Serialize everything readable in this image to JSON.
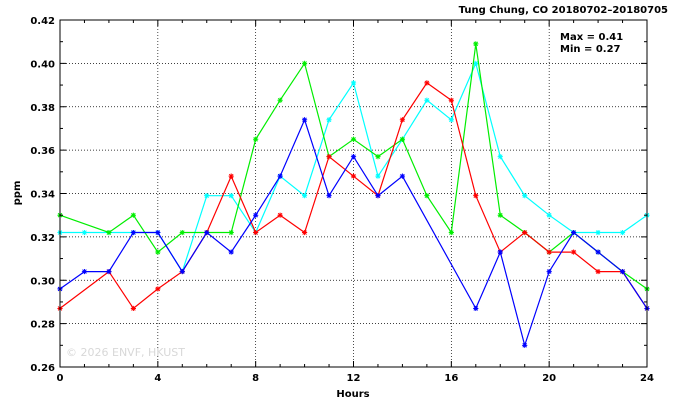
{
  "chart_data": {
    "type": "line",
    "title": "Tung Chung, CO 20180702–20180705",
    "xlabel": "Hours",
    "ylabel": "ppm",
    "xlim": [
      0,
      24
    ],
    "ylim": [
      0.26,
      0.42
    ],
    "xticks": [
      0,
      4,
      8,
      12,
      16,
      20,
      24
    ],
    "yticks": [
      "0.26",
      "0.28",
      "0.30",
      "0.32",
      "0.34",
      "0.36",
      "0.38",
      "0.40",
      "0.42"
    ],
    "grid": true,
    "stats": {
      "max": "Max = 0.41",
      "min": "Min = 0.27"
    },
    "watermark": "© 2026 ENVF, HKUST",
    "series": [
      {
        "color": "#00ffff",
        "x": [
          0,
          1,
          2,
          3,
          4,
          5,
          6,
          7,
          8,
          9,
          10,
          11,
          12,
          13,
          14,
          15,
          16,
          17,
          18,
          19,
          20,
          21,
          22,
          23,
          24
        ],
        "values": [
          0.322,
          0.322,
          0.322,
          0.322,
          0.322,
          0.304,
          0.339,
          0.339,
          0.322,
          0.348,
          0.339,
          0.374,
          0.391,
          0.348,
          0.365,
          0.383,
          0.374,
          0.4,
          0.357,
          0.339,
          0.33,
          0.322,
          0.322,
          0.322,
          0.33
        ]
      },
      {
        "color": "#00ee00",
        "x": [
          0,
          2,
          3,
          4,
          5,
          6,
          7,
          8,
          9,
          10,
          11,
          12,
          13,
          14,
          15,
          16,
          17,
          18,
          19,
          20,
          21,
          22,
          23,
          24
        ],
        "values": [
          0.33,
          0.322,
          0.33,
          0.313,
          0.322,
          0.322,
          0.322,
          0.365,
          0.383,
          0.4,
          0.357,
          0.365,
          0.357,
          0.365,
          0.339,
          0.322,
          0.409,
          0.33,
          0.322,
          0.313,
          0.322,
          0.313,
          0.304,
          0.296
        ]
      },
      {
        "color": "#ff0000",
        "x": [
          0,
          2,
          3,
          4,
          5,
          6,
          7,
          8,
          9,
          10,
          11,
          12,
          13,
          14,
          15,
          16,
          17,
          18,
          19,
          20,
          21,
          22,
          23,
          24
        ],
        "values": [
          0.287,
          0.304,
          0.287,
          0.296,
          0.304,
          0.322,
          0.348,
          0.322,
          0.33,
          0.322,
          0.357,
          0.348,
          0.339,
          0.374,
          0.391,
          0.383,
          0.339,
          0.313,
          0.322,
          0.313,
          0.313,
          0.304,
          0.304,
          0.287
        ]
      },
      {
        "color": "#0000ff",
        "x": [
          0,
          1,
          2,
          3,
          4,
          5,
          6,
          7,
          8,
          9,
          10,
          11,
          12,
          13,
          14,
          17,
          18,
          19,
          20,
          21,
          22,
          23,
          24
        ],
        "values": [
          0.296,
          0.304,
          0.304,
          0.322,
          0.322,
          0.304,
          0.322,
          0.313,
          0.33,
          0.348,
          0.374,
          0.339,
          0.357,
          0.339,
          0.348,
          0.287,
          0.313,
          0.27,
          0.304,
          0.322,
          0.313,
          0.304,
          0.287
        ]
      }
    ]
  }
}
